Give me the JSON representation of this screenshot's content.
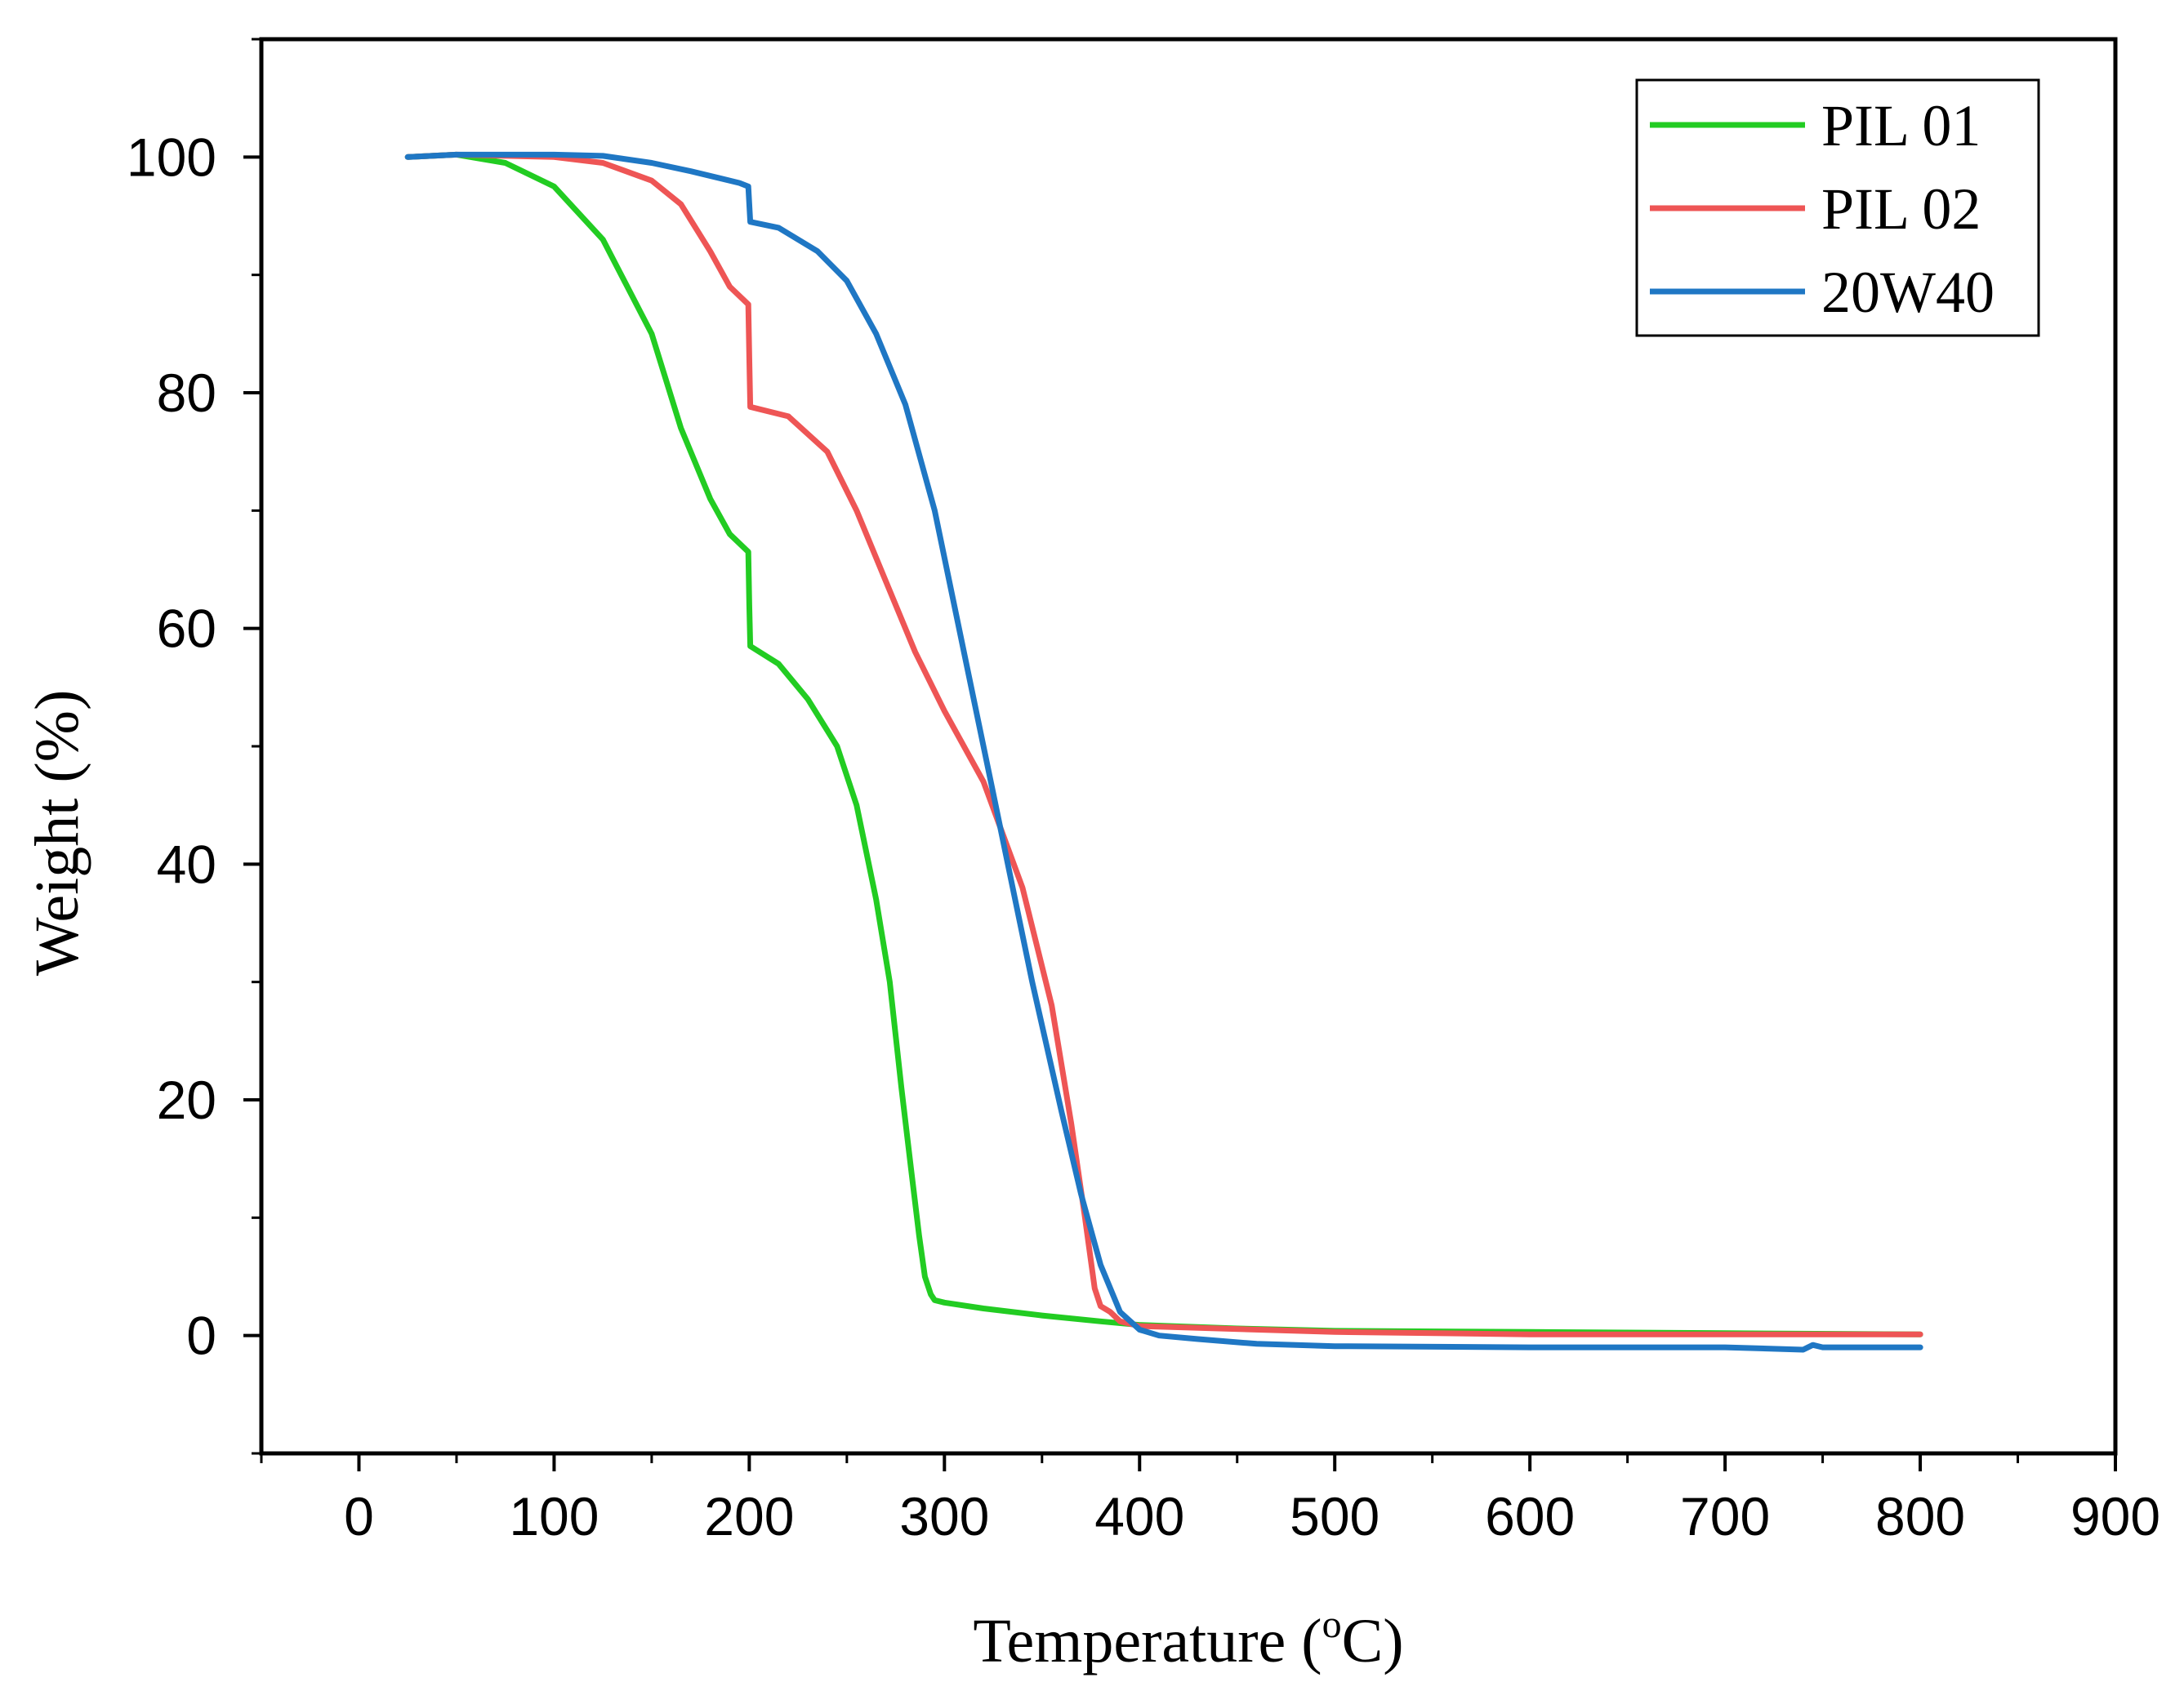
{
  "chart_data": {
    "type": "line",
    "title": "",
    "xlabel": "Temperature (oC)",
    "xlabel_parts": {
      "before": "Temperature (",
      "superscript": "o",
      "after": "C)"
    },
    "ylabel": "Weight (%)",
    "xlim": [
      -50,
      900
    ],
    "ylim": [
      -10,
      110
    ],
    "x_ticks": [
      0,
      100,
      200,
      300,
      400,
      500,
      600,
      700,
      800,
      900
    ],
    "x_tick_labels": [
      "0",
      "100",
      "200",
      "300",
      "400",
      "500",
      "600",
      "700",
      "800",
      "900"
    ],
    "y_ticks": [
      0,
      20,
      40,
      60,
      80,
      100
    ],
    "y_tick_labels": [
      "0",
      "20",
      "40",
      "60",
      "80",
      "100"
    ],
    "grid": false,
    "legend_position": "top-right",
    "series": [
      {
        "name": "PIL 01",
        "color": "#22cc22",
        "x": [
          25,
          50,
          75,
          100,
          125,
          150,
          165,
          180,
          190,
          199.5,
          200,
          200.5,
          215,
          230,
          245,
          255,
          265,
          272,
          278,
          283,
          287,
          290,
          293,
          295,
          300,
          320,
          350,
          380,
          400,
          450,
          500,
          600,
          700,
          800
        ],
        "y": [
          100,
          100.2,
          99.5,
          97.5,
          93,
          85,
          77,
          71,
          68,
          66.5,
          62,
          58.5,
          57,
          54,
          50,
          45,
          37,
          30,
          21,
          14,
          8.5,
          5,
          3.5,
          3,
          2.8,
          2.3,
          1.7,
          1.2,
          0.9,
          0.6,
          0.4,
          0.3,
          0.2,
          0.1
        ]
      },
      {
        "name": "PIL 02",
        "color": "#ee5555",
        "x": [
          25,
          50,
          100,
          125,
          150,
          165,
          180,
          190,
          199.5,
          200,
          200.5,
          220,
          240,
          255,
          270,
          285,
          300,
          320,
          340,
          355,
          365,
          372,
          377,
          380,
          385,
          390,
          400,
          500,
          600,
          700,
          800
        ],
        "y": [
          100,
          100.2,
          100,
          99.5,
          98,
          96,
          92,
          89,
          87.5,
          83,
          78.8,
          78,
          75,
          70,
          64,
          58,
          53,
          47,
          38,
          28,
          18,
          10,
          4,
          2.5,
          2,
          1.2,
          0.8,
          0.3,
          0.1,
          0.1,
          0.1
        ]
      },
      {
        "name": "20W40",
        "color": "#1f77c4",
        "x": [
          25,
          50,
          100,
          125,
          150,
          170,
          185,
          195,
          199.5,
          200,
          200.5,
          215,
          235,
          250,
          265,
          280,
          295,
          310,
          325,
          335,
          345,
          360,
          370,
          380,
          390,
          400,
          410,
          430,
          460,
          500,
          600,
          700,
          740,
          745,
          750,
          800
        ],
        "y": [
          100,
          100.2,
          100.2,
          100.1,
          99.5,
          98.8,
          98.2,
          97.8,
          97.5,
          96,
          94.5,
          94,
          92,
          89.5,
          85,
          79,
          70,
          58,
          46,
          38,
          30,
          19,
          12,
          6,
          2,
          0.5,
          0,
          -0.3,
          -0.7,
          -0.9,
          -1,
          -1,
          -1.2,
          -0.8,
          -1,
          -1
        ]
      }
    ]
  }
}
